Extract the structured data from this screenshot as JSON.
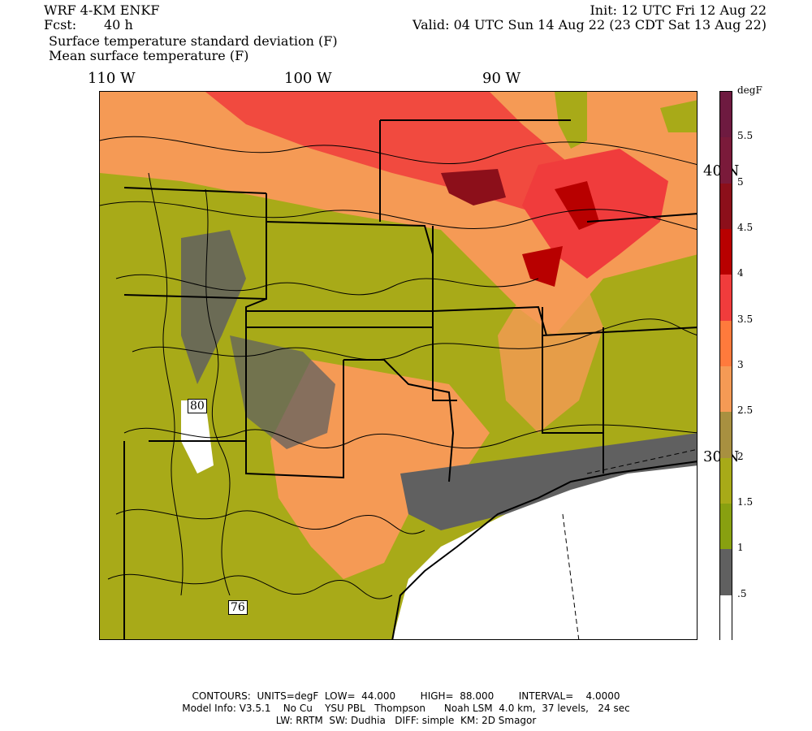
{
  "header": {
    "model": "WRF 4-KM ENKF",
    "init": "Init: 12 UTC Fri 12 Aug 22",
    "fcst_label": "Fcst:",
    "fcst_value": "40 h",
    "valid": "Valid: 04 UTC Sun 14 Aug 22 (23 CDT Sat 13 Aug 22)",
    "field1": "Surface temperature standard deviation (F)",
    "field2": "Mean surface temperature (F)"
  },
  "axes": {
    "lon_labels": [
      "110 W",
      "100 W",
      "90 W"
    ],
    "lat_labels": [
      "40 N",
      "30 N"
    ]
  },
  "colorbar": {
    "unit": "degF",
    "levels": [
      "5.5",
      "5",
      "4.5",
      "4",
      "3.5",
      "3",
      "2.5",
      "2",
      "1.5",
      "1",
      ".5"
    ],
    "colors": [
      "#7a1a3a",
      "#8c0f1a",
      "#b80000",
      "#f03c3c",
      "#ff7a3c",
      "#f59a55",
      "#a89040",
      "#a8aa18",
      "#88a010",
      "#606060",
      "#ffffff"
    ]
  },
  "contour_labels": [
    "80",
    "76"
  ],
  "footer": {
    "line1": "CONTOURS:  UNITS=degF  LOW=  44.000        HIGH=  88.000        INTERVAL=    4.0000",
    "line2": "Model Info: V3.5.1    No Cu    YSU PBL   Thompson      Noah LSM  4.0 km,  37 levels,   24 sec",
    "line3": "LW: RRTM  SW: Dudhia   DIFF: simple  KM: 2D Smagor"
  }
}
